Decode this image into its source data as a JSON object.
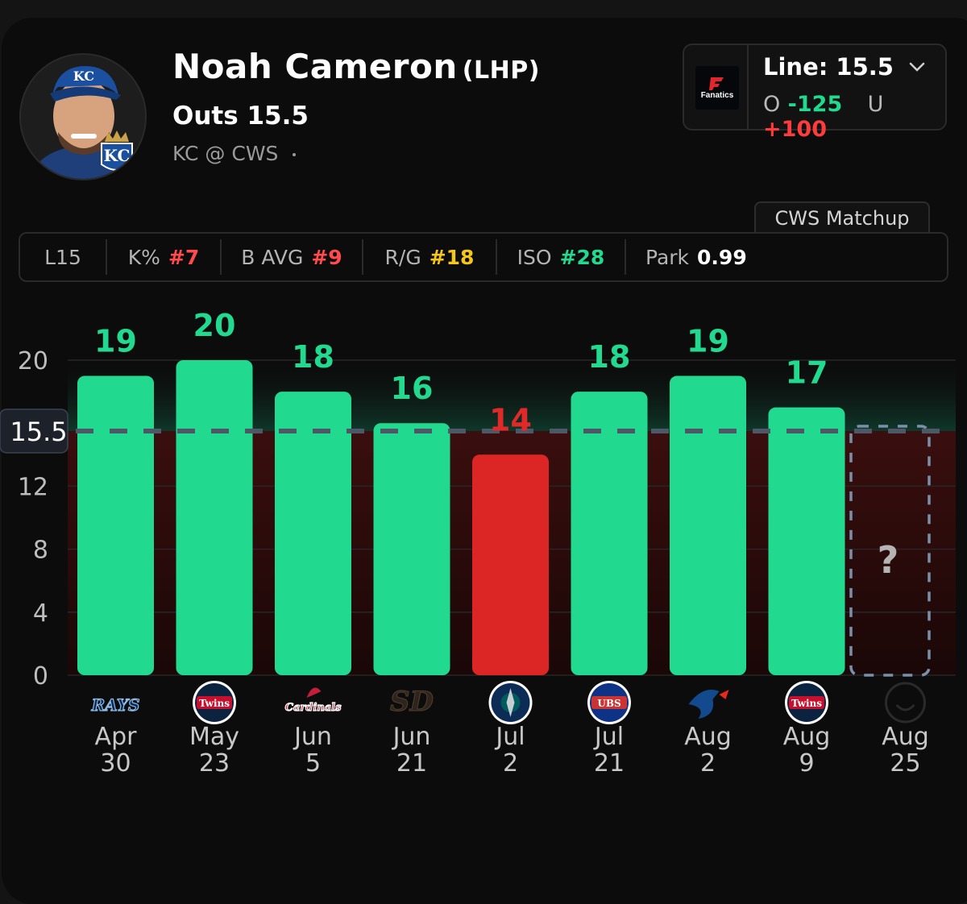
{
  "player": {
    "name": "Noah Cameron",
    "position": "(LHP)",
    "prop": "Outs 15.5",
    "matchup": "KC @ CWS",
    "team_badge": "KC"
  },
  "line_box": {
    "book": "Fanatics",
    "line_label": "Line: 15.5",
    "over_tag": "O",
    "over_odds": "-125",
    "under_tag": "U",
    "under_odds": "+100"
  },
  "tab": "CWS Matchup",
  "stats": [
    {
      "label": "L15",
      "value": ""
    },
    {
      "label": "K%",
      "value": "#7",
      "color": "#ff4b4b"
    },
    {
      "label": "B AVG",
      "value": "#9",
      "color": "#ff4b4b"
    },
    {
      "label": "R/G",
      "value": "#18",
      "color": "#f5c518"
    },
    {
      "label": "ISO",
      "value": "#28",
      "color": "#22d990"
    },
    {
      "label": "Park",
      "value": "0.99",
      "color": "#ffffff"
    }
  ],
  "chart_data": {
    "type": "bar",
    "line": 15.5,
    "line_label": "15.5",
    "yticks": [
      0,
      4,
      8,
      12,
      20
    ],
    "ylim": [
      0,
      20
    ],
    "categories": [
      {
        "month": "Apr",
        "day": "30",
        "opponent": "RAYS"
      },
      {
        "month": "May",
        "day": "23",
        "opponent": "Twins"
      },
      {
        "month": "Jun",
        "day": "5",
        "opponent": "Cardinals"
      },
      {
        "month": "Jun",
        "day": "21",
        "opponent": "SD"
      },
      {
        "month": "Jul",
        "day": "2",
        "opponent": "Mariners"
      },
      {
        "month": "Jul",
        "day": "21",
        "opponent": "CUBS"
      },
      {
        "month": "Aug",
        "day": "2",
        "opponent": "Blue Jays"
      },
      {
        "month": "Aug",
        "day": "9",
        "opponent": "Twins"
      },
      {
        "month": "Aug",
        "day": "25",
        "opponent": ""
      }
    ],
    "values": [
      19,
      20,
      18,
      16,
      14,
      18,
      19,
      17,
      null
    ],
    "upcoming_label": "?",
    "colors": {
      "over": "#22d990",
      "under": "#dc2626"
    }
  }
}
